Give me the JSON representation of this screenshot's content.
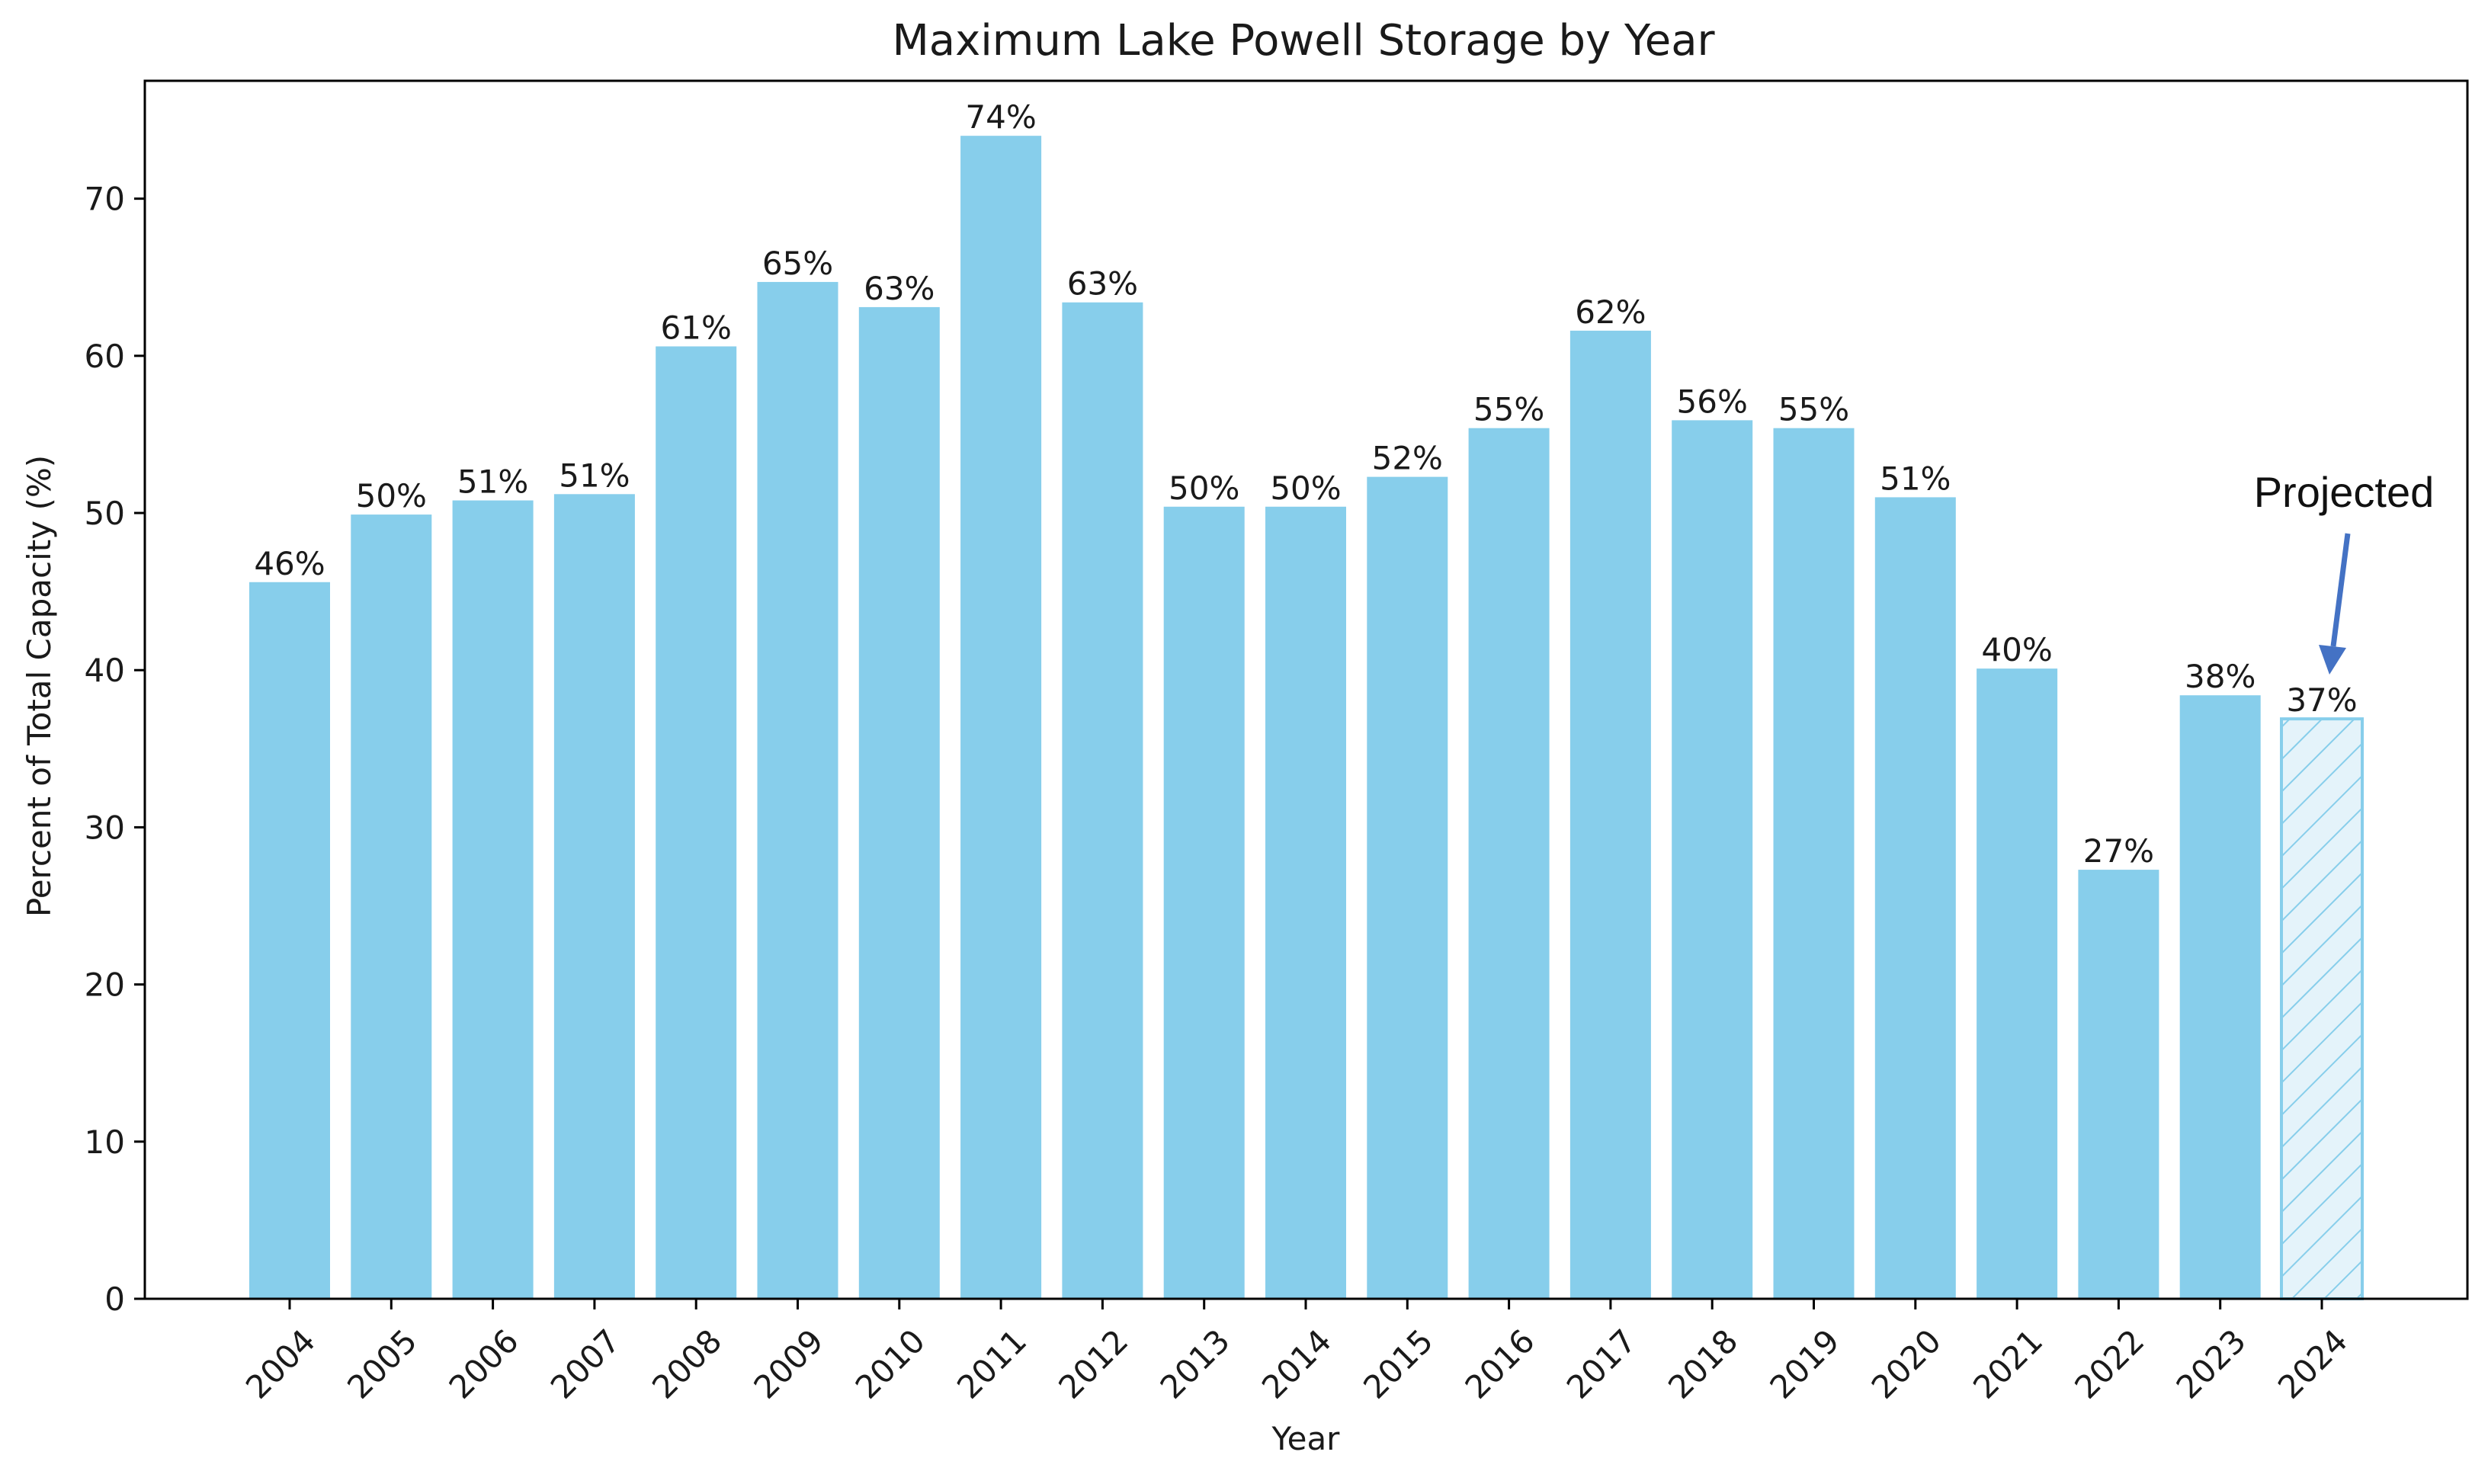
{
  "chart_data": {
    "type": "bar",
    "title": "Maximum Lake Powell Storage by Year",
    "xlabel": "Year",
    "ylabel": "Percent of Total Capacity (%)",
    "ylim": [
      0,
      77.5
    ],
    "yticks": [
      0,
      10,
      20,
      30,
      40,
      50,
      60,
      70
    ],
    "grid": false,
    "categories": [
      "2004",
      "2005",
      "2006",
      "2007",
      "2008",
      "2009",
      "2010",
      "2011",
      "2012",
      "2013",
      "2014",
      "2015",
      "2016",
      "2017",
      "2018",
      "2019",
      "2020",
      "2021",
      "2022",
      "2023",
      "2024"
    ],
    "values": [
      45.6,
      49.9,
      50.8,
      51.2,
      60.6,
      64.7,
      63.1,
      74.0,
      63.4,
      50.4,
      50.4,
      52.3,
      55.4,
      61.6,
      55.9,
      55.4,
      51.0,
      40.1,
      27.3,
      38.4,
      36.9
    ],
    "value_labels": [
      "46%",
      "50%",
      "51%",
      "51%",
      "61%",
      "65%",
      "63%",
      "74%",
      "63%",
      "50%",
      "50%",
      "52%",
      "55%",
      "62%",
      "56%",
      "55%",
      "51%",
      "40%",
      "27%",
      "38%",
      "37%"
    ],
    "projected_index": 20,
    "annotation": {
      "text": "Projected",
      "target": "2024"
    },
    "colors": {
      "bar": "#87CEEB",
      "projected_fill": "#e4f3fa",
      "projected_edge": "#87CEEB",
      "arrow": "#4472C4",
      "axis": "#000000"
    }
  }
}
